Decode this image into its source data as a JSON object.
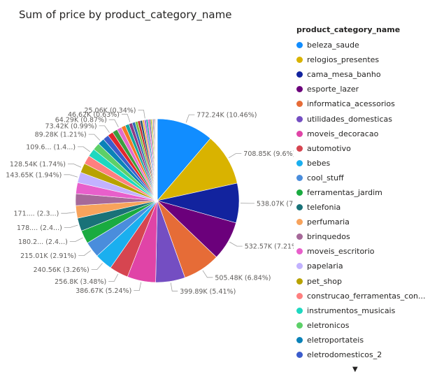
{
  "chart_data": {
    "type": "pie",
    "title": "Sum of price by product_category_name",
    "legend_title": "product_category_name",
    "legend_position": "right",
    "slices": [
      {
        "name": "beleza_saude",
        "value": 772.24,
        "percent": 10.46,
        "label": "772.24K (10.46%)",
        "color": "#118DFF"
      },
      {
        "name": "relogios_presentes",
        "value": 708.85,
        "percent": 9.6,
        "label": "708.85K (9.6%)",
        "color": "#D9B300"
      },
      {
        "name": "cama_mesa_banho",
        "value": 538.07,
        "percent": 7.28,
        "label": "538.07K (7.28%)",
        "color": "#12239E"
      },
      {
        "name": "esporte_lazer",
        "value": 532.57,
        "percent": 7.21,
        "label": "532.57K (7.21%)",
        "color": "#6B007B"
      },
      {
        "name": "informatica_acessorios",
        "value": 505.48,
        "percent": 6.84,
        "label": "505.48K (6.84%)",
        "color": "#E66C37"
      },
      {
        "name": "utilidades_domesticas",
        "value": 399.89,
        "percent": 5.41,
        "label": "399.89K (5.41%)",
        "color": "#744EC2"
      },
      {
        "name": "moveis_decoracao",
        "value": 386.67,
        "percent": 5.24,
        "label": "386.67K (5.24%)",
        "color": "#E044A7"
      },
      {
        "name": "automotivo",
        "value": 256.8,
        "percent": 3.48,
        "label": "256.8K (3.48%)",
        "color": "#D64550"
      },
      {
        "name": "bebes",
        "value": 240.56,
        "percent": 3.26,
        "label": "240.56K (3.26%)",
        "color": "#1AAFEF"
      },
      {
        "name": "cool_stuff",
        "value": 215.01,
        "percent": 2.91,
        "label": "215.01K (2.91%)",
        "color": "#4A8DDC"
      },
      {
        "name": "ferramentas_jardim",
        "value": 180.2,
        "percent": 2.44,
        "label": "180.2... (2.4...)",
        "color": "#1AAB40"
      },
      {
        "name": "telefonia",
        "value": 178.0,
        "percent": 2.41,
        "label": "178.... (2.4...)",
        "color": "#197278"
      },
      {
        "name": "perfumaria",
        "value": 171.0,
        "percent": 2.31,
        "label": "171.... (2.3...)",
        "color": "#F7A35C"
      },
      {
        "name": "brinquedos",
        "value": 160.0,
        "percent": 2.17,
        "label": "",
        "color": "#A66999"
      },
      {
        "name": "moveis_escritorio",
        "value": 150.0,
        "percent": 2.03,
        "label": "",
        "color": "#E85FCB"
      },
      {
        "name": "papelaria",
        "value": 143.65,
        "percent": 1.94,
        "label": "143.65K (1.94%)",
        "color": "#C2B2FF"
      },
      {
        "name": "pet_shop",
        "value": 128.54,
        "percent": 1.74,
        "label": "128.54K (1.74%)",
        "color": "#B8A200"
      },
      {
        "name": "construcao_ferramentas_construcao",
        "value": 118.0,
        "percent": 1.6,
        "label": "",
        "color": "#FF7F7F"
      },
      {
        "name": "instrumentos_musicais",
        "value": 109.6,
        "percent": 1.48,
        "label": "109.6... (1.4...)",
        "color": "#1ED8C0"
      },
      {
        "name": "eletronicos",
        "value": 98.0,
        "percent": 1.33,
        "label": "",
        "color": "#5CD068"
      },
      {
        "name": "eletroportateis",
        "value": 89.28,
        "percent": 1.21,
        "label": "89.28K (1.21%)",
        "color": "#0A82B8"
      },
      {
        "name": "eletrodomesticos_2",
        "value": 80.0,
        "percent": 1.08,
        "label": "",
        "color": "#3B5CCC"
      },
      {
        "name": "",
        "value": 73.42,
        "percent": 0.99,
        "label": "73.42K (0.99%)",
        "color": "#E2262D"
      },
      {
        "name": "",
        "value": 70.0,
        "percent": 0.95,
        "label": "",
        "color": "#3B9E3F"
      },
      {
        "name": "",
        "value": 64.29,
        "percent": 0.87,
        "label": "64.29K (0.87%)",
        "color": "#E36BCC"
      },
      {
        "name": "",
        "value": 58.0,
        "percent": 0.79,
        "label": "",
        "color": "#F47A24"
      },
      {
        "name": "",
        "value": 52.0,
        "percent": 0.7,
        "label": "",
        "color": "#13A89E"
      },
      {
        "name": "",
        "value": 46.62,
        "percent": 0.63,
        "label": "46.62K (0.63%)",
        "color": "#8F3A84"
      },
      {
        "name": "",
        "value": 40.0,
        "percent": 0.54,
        "label": "",
        "color": "#2C6FB7"
      },
      {
        "name": "",
        "value": 36.0,
        "percent": 0.49,
        "label": "",
        "color": "#7BC043"
      },
      {
        "name": "",
        "value": 33.0,
        "percent": 0.45,
        "label": "",
        "color": "#C1272D"
      },
      {
        "name": "",
        "value": 30.0,
        "percent": 0.41,
        "label": "",
        "color": "#1B4F72"
      },
      {
        "name": "",
        "value": 27.5,
        "percent": 0.37,
        "label": "",
        "color": "#E9B44C"
      },
      {
        "name": "",
        "value": 25.06,
        "percent": 0.34,
        "label": "25.06K (0.34%)",
        "color": "#9B5DE5"
      },
      {
        "name": "",
        "value": 22.0,
        "percent": 0.3,
        "label": "",
        "color": "#00A6A6"
      },
      {
        "name": "",
        "value": 20.0,
        "percent": 0.27,
        "label": "",
        "color": "#F15BB5"
      },
      {
        "name": "",
        "value": 18.0,
        "percent": 0.24,
        "label": "",
        "color": "#6A4C93"
      },
      {
        "name": "",
        "value": 16.0,
        "percent": 0.22,
        "label": "",
        "color": "#8AC926"
      },
      {
        "name": "",
        "value": 14.0,
        "percent": 0.19,
        "label": "",
        "color": "#FF924C"
      },
      {
        "name": "",
        "value": 12.0,
        "percent": 0.16,
        "label": "",
        "color": "#1982C4"
      },
      {
        "name": "",
        "value": 10.0,
        "percent": 0.14,
        "label": "",
        "color": "#D62828"
      },
      {
        "name": "",
        "value": 9.0,
        "percent": 0.12,
        "label": "",
        "color": "#5E548E"
      },
      {
        "name": "",
        "value": 8.0,
        "percent": 0.11,
        "label": "",
        "color": "#B5838D"
      },
      {
        "name": "",
        "value": 7.0,
        "percent": 0.09,
        "label": "",
        "color": "#2A9D8F"
      },
      {
        "name": "",
        "value": 6.0,
        "percent": 0.08,
        "label": "",
        "color": "#E76F51"
      },
      {
        "name": "",
        "value": 5.0,
        "percent": 0.07,
        "label": "",
        "color": "#264653"
      },
      {
        "name": "",
        "value": 4.0,
        "percent": 0.05,
        "label": "",
        "color": "#F4A261"
      }
    ]
  },
  "legend": {
    "items": [
      {
        "label": "beleza_saude",
        "color": "#118DFF"
      },
      {
        "label": "relogios_presentes",
        "color": "#D9B300"
      },
      {
        "label": "cama_mesa_banho",
        "color": "#12239E"
      },
      {
        "label": "esporte_lazer",
        "color": "#6B007B"
      },
      {
        "label": "informatica_acessorios",
        "color": "#E66C37"
      },
      {
        "label": "utilidades_domesticas",
        "color": "#744EC2"
      },
      {
        "label": "moveis_decoracao",
        "color": "#E044A7"
      },
      {
        "label": "automotivo",
        "color": "#D64550"
      },
      {
        "label": "bebes",
        "color": "#1AAFEF"
      },
      {
        "label": "cool_stuff",
        "color": "#4A8DDC"
      },
      {
        "label": "ferramentas_jardim",
        "color": "#1AAB40"
      },
      {
        "label": "telefonia",
        "color": "#197278"
      },
      {
        "label": "perfumaria",
        "color": "#F7A35C"
      },
      {
        "label": "brinquedos",
        "color": "#A66999"
      },
      {
        "label": "moveis_escritorio",
        "color": "#E85FCB"
      },
      {
        "label": "papelaria",
        "color": "#C2B2FF"
      },
      {
        "label": "pet_shop",
        "color": "#B8A200"
      },
      {
        "label": "construcao_ferramentas_con...",
        "color": "#FF7F7F"
      },
      {
        "label": "instrumentos_musicais",
        "color": "#1ED8C0"
      },
      {
        "label": "eletronicos",
        "color": "#5CD068"
      },
      {
        "label": "eletroportateis",
        "color": "#0A82B8"
      },
      {
        "label": "eletrodomesticos_2",
        "color": "#3B5CCC"
      }
    ],
    "more_icon": "caret-down-icon",
    "more_glyph": "▼"
  }
}
